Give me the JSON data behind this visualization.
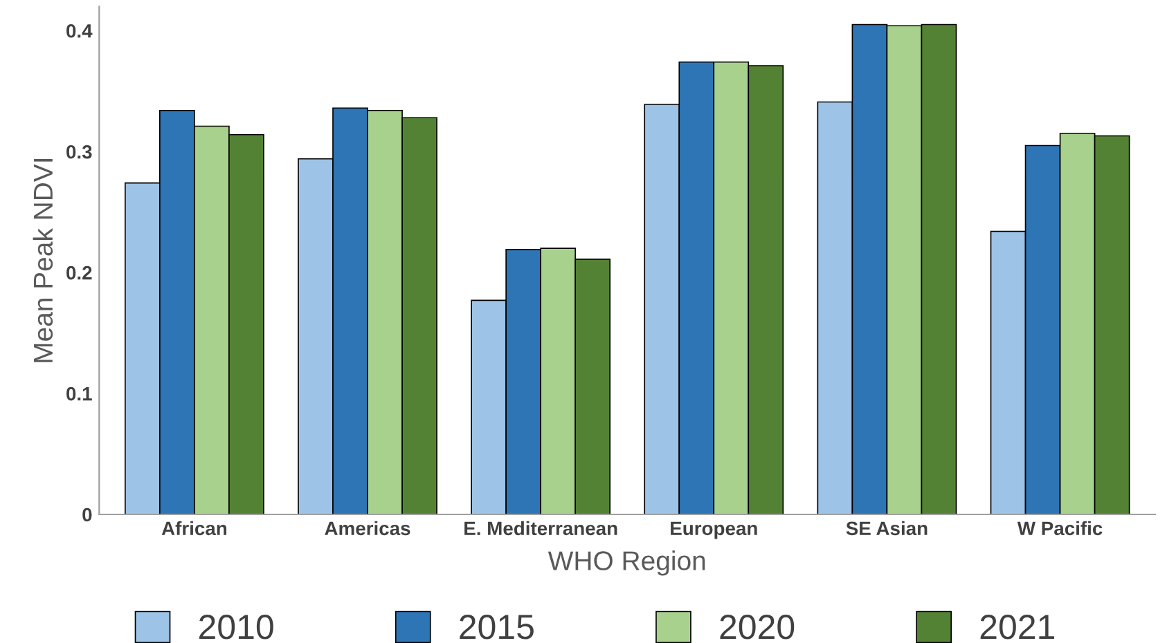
{
  "chart_data": {
    "type": "bar",
    "xlabel": "WHO Region",
    "ylabel": "Mean Peak NDVI",
    "categories": [
      "African",
      "Americas",
      "E. Mediterranean",
      "European",
      "SE Asian",
      "W Pacific"
    ],
    "series": [
      {
        "name": "2010",
        "color": "#9dc3e6",
        "values": [
          0.274,
          0.294,
          0.177,
          0.339,
          0.341,
          0.234
        ]
      },
      {
        "name": "2015",
        "color": "#2e75b6",
        "values": [
          0.334,
          0.336,
          0.219,
          0.374,
          0.405,
          0.305
        ]
      },
      {
        "name": "2020",
        "color": "#a9d18e",
        "values": [
          0.321,
          0.334,
          0.22,
          0.374,
          0.404,
          0.315
        ]
      },
      {
        "name": "2021",
        "color": "#548235",
        "values": [
          0.314,
          0.328,
          0.211,
          0.371,
          0.405,
          0.313
        ]
      }
    ],
    "ylim": [
      0,
      0.42
    ],
    "yticks": [
      0,
      0.1,
      0.2,
      0.3,
      0.4
    ],
    "grid": false,
    "legend": "bottom"
  }
}
